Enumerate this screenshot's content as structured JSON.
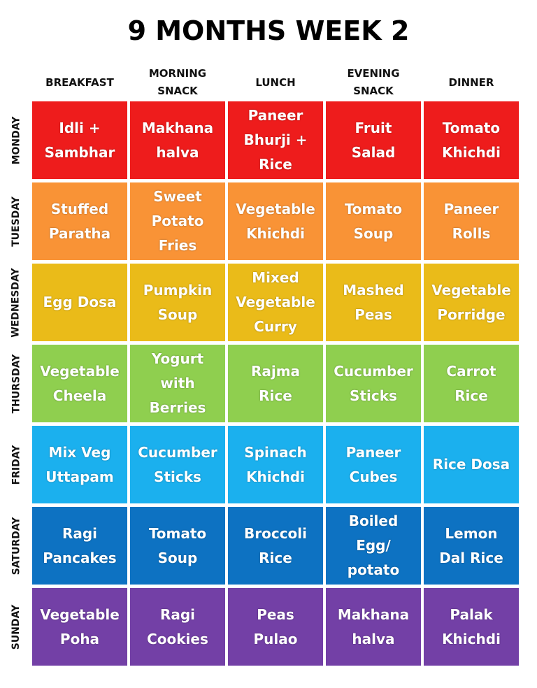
{
  "title": "9 MONTHS WEEK 2",
  "columns": [
    "BREAKFAST",
    "MORNING\nSNACK",
    "LUNCH",
    "EVENING\nSNACK",
    "DINNER"
  ],
  "rows": [
    {
      "day": "MONDAY",
      "color": "#ee1c1c",
      "meals": [
        "Idli +\nSambhar",
        "Makhana\nhalva",
        "Paneer\nBhurji +\nRice",
        "Fruit\nSalad",
        "Tomato\nKhichdi"
      ]
    },
    {
      "day": "TUESDAY",
      "color": "#f99336",
      "meals": [
        "Stuffed\nParatha",
        "Sweet\nPotato\nFries",
        "Vegetable\nKhichdi",
        "Tomato\nSoup",
        "Paneer\nRolls"
      ]
    },
    {
      "day": "WEDNESDAY",
      "color": "#eabb19",
      "meals": [
        "Egg Dosa",
        "Pumpkin\nSoup",
        "Mixed\nVegetable\nCurry",
        "Mashed\nPeas",
        "Vegetable\nPorridge"
      ]
    },
    {
      "day": "THURSDAY",
      "color": "#8fcf4f",
      "meals": [
        "Vegetable\nCheela",
        "Yogurt\nwith\nBerries",
        "Rajma\nRice",
        "Cucumber\nSticks",
        "Carrot\nRice"
      ]
    },
    {
      "day": "FRIDAY",
      "color": "#1bb0ee",
      "meals": [
        "Mix Veg\nUttapam",
        "Cucumber\nSticks",
        "Spinach\nKhichdi",
        "Paneer\nCubes",
        "Rice Dosa"
      ]
    },
    {
      "day": "SATURDAY",
      "color": "#0d72c2",
      "meals": [
        "Ragi\nPancakes",
        "Tomato\nSoup",
        "Broccoli\nRice",
        "Boiled\nEgg/\npotato",
        "Lemon\nDal Rice"
      ]
    },
    {
      "day": "SUNDAY",
      "color": "#7340a6",
      "meals": [
        "Vegetable\nPoha",
        "Ragi\nCookies",
        "Peas\nPulao",
        "Makhana\nhalva",
        "Palak\nKhichdi"
      ]
    }
  ]
}
